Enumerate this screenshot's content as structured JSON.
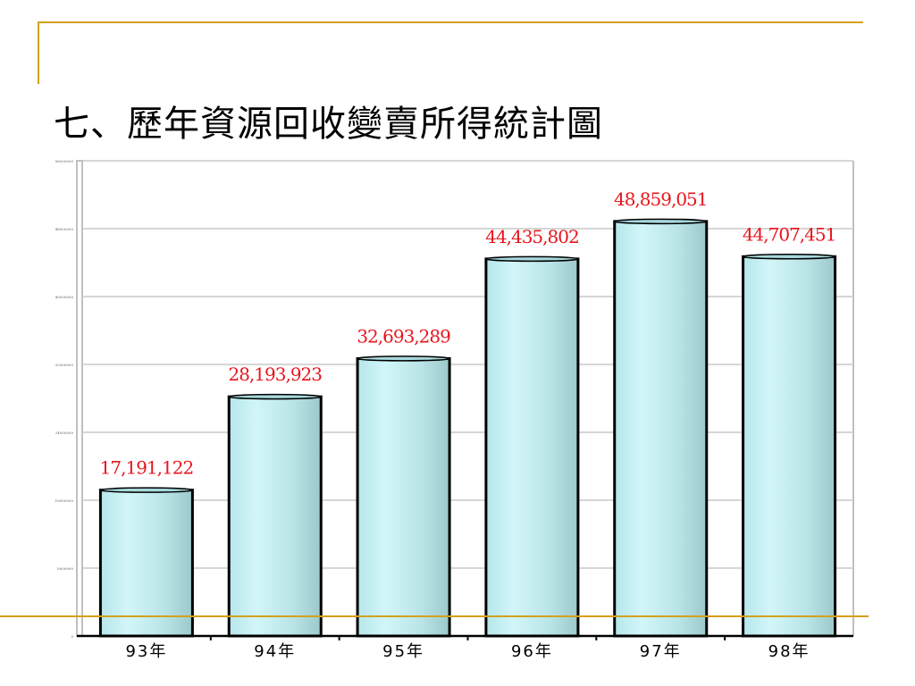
{
  "title": "七、歷年資源回收變賣所得統計圖",
  "chart_data": {
    "type": "bar",
    "title": "七、歷年資源回收變賣所得統計圖",
    "categories": [
      "93年",
      "94年",
      "95年",
      "96年",
      "97年",
      "98年"
    ],
    "values": [
      17191122,
      28193923,
      32693289,
      44435802,
      48859051,
      44707451
    ],
    "value_labels": [
      "17,191,122",
      "28,193,923",
      "32,693,289",
      "44,435,802",
      "48,859,051",
      "44,707,451"
    ],
    "yticks": [
      0,
      8000000,
      16000000,
      24000000,
      32000000,
      40000000,
      48000000,
      56000000
    ],
    "ylim": [
      0,
      56000000
    ],
    "xlabel": "",
    "ylabel": "",
    "grid": true,
    "colors": {
      "bar": "#c4eef0",
      "label": "#e8141c",
      "accent": "#d4a11e"
    }
  }
}
